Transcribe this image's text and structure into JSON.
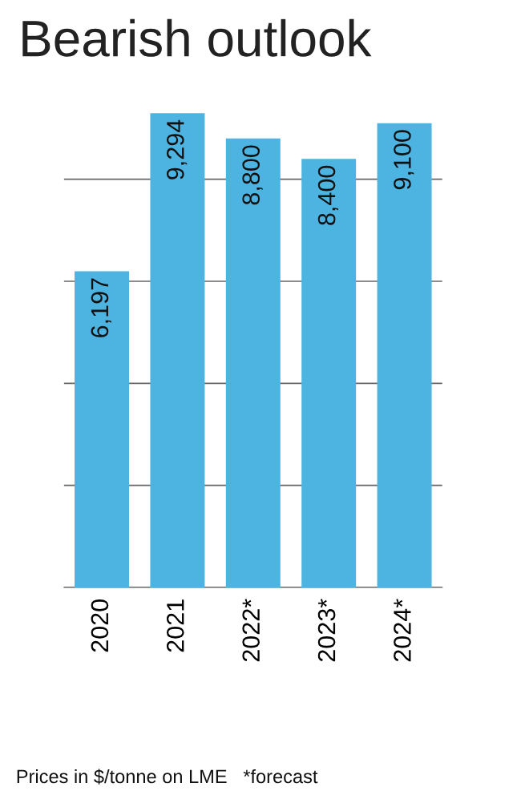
{
  "chart_data": {
    "type": "bar",
    "title": "Bearish outlook",
    "categories": [
      "2020",
      "2021",
      "2022*",
      "2023*",
      "2024*"
    ],
    "values": [
      6197,
      9294,
      8800,
      8400,
      9100
    ],
    "color": "#4db3e0",
    "value_labels": [
      "6,197",
      "9,294",
      "8,800",
      "8,400",
      "9,100"
    ],
    "grid": "y",
    "tick_labels": "x",
    "annotations": [
      "Prices in $/tonne on LME   *forecast"
    ]
  }
}
